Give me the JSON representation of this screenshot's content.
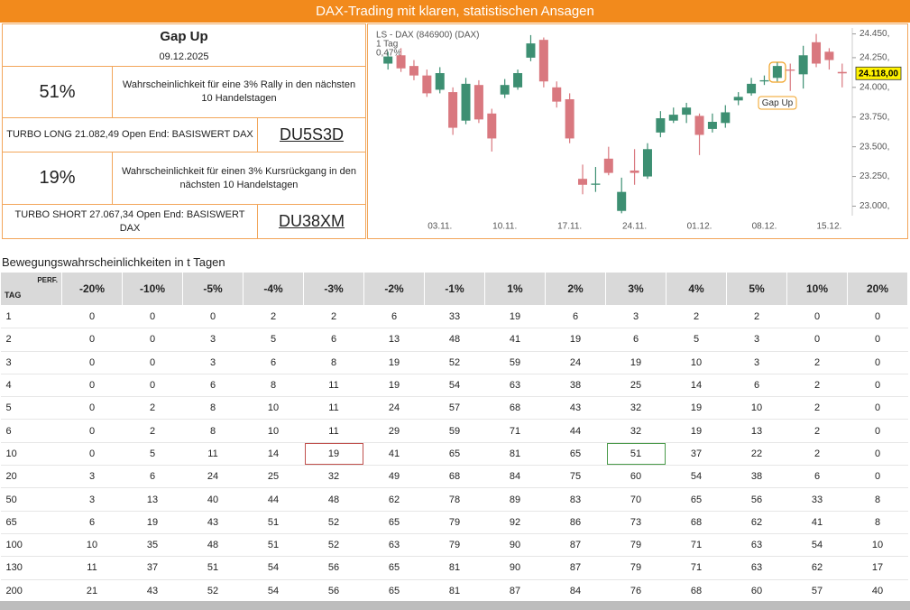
{
  "header": {
    "title": "DAX-Trading mit klaren, statistischen Ansagen"
  },
  "summary": {
    "title": "Gap Up",
    "date": "09.12.2025",
    "long": {
      "probability": "51%",
      "text": "Wahrscheinlichkeit für eine 3% Rally in den nächsten 10 Handelstagen",
      "product": "TURBO LONG 21.082,49 Open End: BASISWERT DAX",
      "wkn": "DU5S3D"
    },
    "short": {
      "probability": "19%",
      "text": "Wahrscheinlichkeit für einen 3% Kursrückgang in den nächsten 10 Handelstagen",
      "product": "TURBO SHORT 27.067,34 Open End: BASISWERT DAX",
      "wkn": "DU38XM"
    }
  },
  "chart_data": {
    "type": "candlestick",
    "title": "LS - DAX (846900) (DAX)",
    "subtitle": "1 Tag",
    "change": "0,47%",
    "annotation": "Gap Up",
    "categories": [
      null,
      null,
      null,
      null,
      "03.11.",
      null,
      null,
      null,
      null,
      "10.11.",
      null,
      null,
      null,
      null,
      "17.11.",
      null,
      null,
      null,
      null,
      "24.11.",
      null,
      null,
      null,
      null,
      "01.12.",
      null,
      null,
      null,
      null,
      "08.12.",
      null,
      null,
      null,
      null,
      "15.12.",
      null
    ],
    "open": [
      24200,
      24270,
      24180,
      24100,
      23980,
      23960,
      23720,
      24020,
      23780,
      23940,
      24000,
      24250,
      24400,
      24000,
      23900,
      23230,
      23180,
      23400,
      22960,
      23300,
      23250,
      23620,
      23720,
      23770,
      23760,
      23650,
      23700,
      23890,
      23950,
      24050,
      24080,
      24150,
      24110,
      24380,
      24300,
      24130
    ],
    "high": [
      24300,
      24330,
      24230,
      24150,
      24170,
      24000,
      24080,
      24060,
      23820,
      24070,
      24150,
      24440,
      24420,
      24050,
      23950,
      23350,
      23330,
      23500,
      23240,
      23480,
      23530,
      23800,
      23830,
      23870,
      23780,
      23780,
      23850,
      23960,
      24080,
      24100,
      24210,
      24200,
      24350,
      24450,
      24330,
      24200
    ],
    "low": [
      24150,
      24130,
      24060,
      23920,
      23950,
      23600,
      23690,
      23700,
      23460,
      23910,
      23980,
      24220,
      24000,
      23830,
      23530,
      23100,
      23120,
      23260,
      22940,
      23180,
      23230,
      23580,
      23700,
      23700,
      23430,
      23620,
      23660,
      23850,
      23930,
      24020,
      24050,
      23970,
      23990,
      24170,
      24150,
      24000
    ],
    "close": [
      24260,
      24160,
      24100,
      23950,
      24120,
      23660,
      24030,
      23730,
      23570,
      24020,
      24120,
      24370,
      24050,
      23880,
      23570,
      23180,
      23190,
      23280,
      23120,
      23280,
      23480,
      23740,
      23770,
      23830,
      23600,
      23710,
      23790,
      23920,
      24030,
      24060,
      24180,
      24140,
      24270,
      24200,
      24230,
      24118
    ],
    "up_color": "#3d8f72",
    "down_color": "#d9787f",
    "ylim": [
      22920,
      24500
    ],
    "yticks": [
      {
        "value": 23000,
        "label": "23.000,"
      },
      {
        "value": 23250,
        "label": "23.250,"
      },
      {
        "value": 23500,
        "label": "23.500,"
      },
      {
        "value": 23750,
        "label": "23.750,"
      },
      {
        "value": 24000,
        "label": "24.000,"
      },
      {
        "value": 24250,
        "label": "24.250,"
      },
      {
        "value": 24450,
        "label": "24.450,"
      }
    ],
    "last_price": {
      "value": 24118,
      "label": "24.118,00"
    }
  },
  "table": {
    "title": "Bewegungswahrscheinlichkeiten in t Tagen",
    "row_header": "TAG",
    "column_header": "PERF.",
    "columns": [
      "-20%",
      "-10%",
      "-5%",
      "-4%",
      "-3%",
      "-2%",
      "-1%",
      "1%",
      "2%",
      "3%",
      "4%",
      "5%",
      "10%",
      "20%"
    ],
    "rows": [
      [
        1,
        0,
        0,
        0,
        2,
        2,
        6,
        33,
        19,
        6,
        3,
        2,
        2,
        0,
        0
      ],
      [
        2,
        0,
        0,
        3,
        5,
        6,
        13,
        48,
        41,
        19,
        6,
        5,
        3,
        0,
        0
      ],
      [
        3,
        0,
        0,
        3,
        6,
        8,
        19,
        52,
        59,
        24,
        19,
        10,
        3,
        2,
        0
      ],
      [
        4,
        0,
        0,
        6,
        8,
        11,
        19,
        54,
        63,
        38,
        25,
        14,
        6,
        2,
        0
      ],
      [
        5,
        0,
        2,
        8,
        10,
        11,
        24,
        57,
        68,
        43,
        32,
        19,
        10,
        2,
        0
      ],
      [
        6,
        0,
        2,
        8,
        10,
        11,
        29,
        59,
        71,
        44,
        32,
        19,
        13,
        2,
        0
      ],
      [
        10,
        0,
        5,
        11,
        14,
        19,
        41,
        65,
        81,
        65,
        51,
        37,
        22,
        2,
        0
      ],
      [
        20,
        3,
        6,
        24,
        25,
        32,
        49,
        68,
        84,
        75,
        60,
        54,
        38,
        6,
        0
      ],
      [
        50,
        3,
        13,
        40,
        44,
        48,
        62,
        78,
        89,
        83,
        70,
        65,
        56,
        33,
        8
      ],
      [
        65,
        6,
        19,
        43,
        51,
        52,
        65,
        79,
        92,
        86,
        73,
        68,
        62,
        41,
        8
      ],
      [
        100,
        10,
        35,
        48,
        51,
        52,
        63,
        79,
        90,
        87,
        79,
        71,
        63,
        54,
        10
      ],
      [
        130,
        11,
        37,
        51,
        54,
        56,
        65,
        81,
        90,
        87,
        79,
        71,
        63,
        62,
        17
      ],
      [
        200,
        21,
        43,
        52,
        54,
        56,
        65,
        81,
        87,
        84,
        76,
        68,
        60,
        57,
        40
      ]
    ]
  }
}
